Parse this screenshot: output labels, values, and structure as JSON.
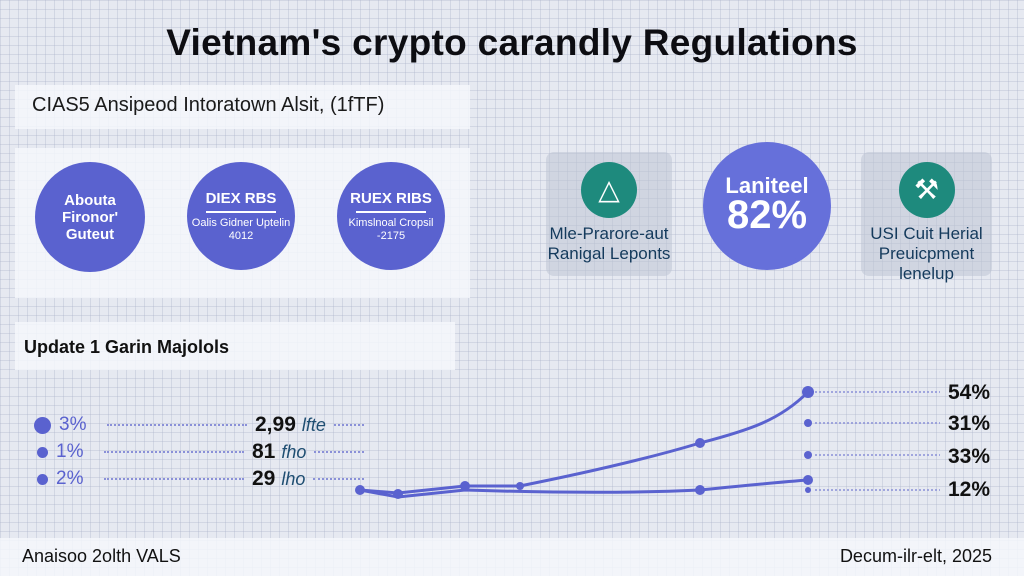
{
  "title": "Vietnam's crypto carandly Regulations",
  "subtitle": "CIAS5 Ansipeod Intoratown Alsit, (1fTF)",
  "badges": [
    {
      "text": "Abouta Fironor' Guteut"
    },
    {
      "title": "DIEX RBS",
      "sub": "Oalis Gidner Uptelin 4012"
    },
    {
      "title": "RUEX RIBS",
      "sub": "Kimslnoal Cropsil -2175"
    }
  ],
  "cards": [
    {
      "icon": "warning-triangle-icon",
      "label": "Mle-Prarore-aut Ranigal Leponts"
    },
    {
      "icon": "pickaxe-icon",
      "label": "USI Cuit Herial Preuicpment lenelup"
    }
  ],
  "highlight": {
    "label": "Laniteel",
    "value": "82%"
  },
  "section_title": "Update 1 Garin Majolols",
  "rows": [
    {
      "pct": "3%",
      "value": "2,99",
      "unit": "lfte"
    },
    {
      "pct": "1%",
      "value": "81",
      "unit": "fho"
    },
    {
      "pct": "2%",
      "value": "29",
      "unit": "lho"
    }
  ],
  "right_labels": [
    "54%",
    "31%",
    "33%",
    "12%"
  ],
  "footer": {
    "left": "Anaisoo 2olth VALS",
    "right": "Decum-ilr-elt, 2025"
  },
  "colors": {
    "accent": "#5a62cf",
    "teal": "#1e8a7d"
  }
}
